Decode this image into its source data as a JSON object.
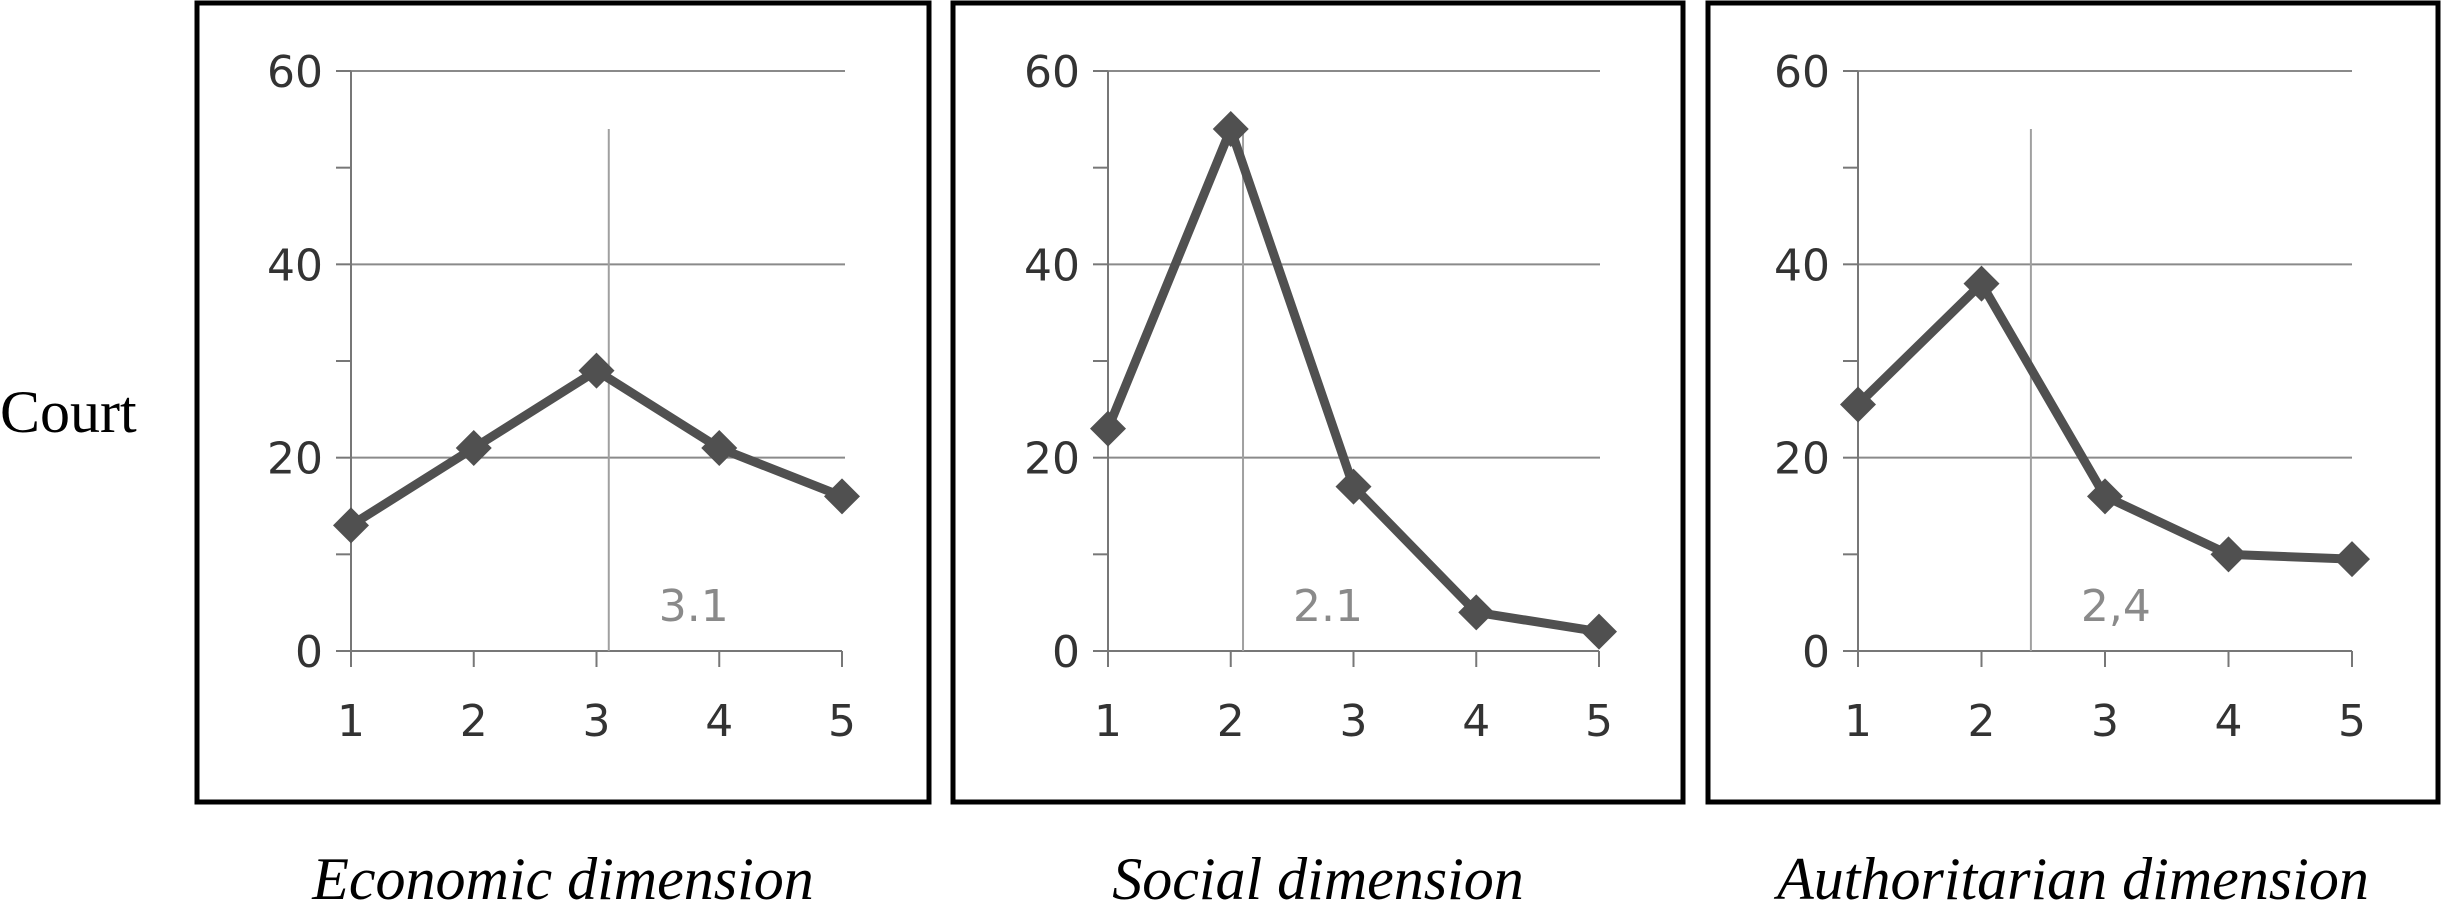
{
  "row_label": "Court",
  "chart_data": [
    {
      "type": "line",
      "caption": "Economic dimension",
      "x": [
        1,
        2,
        3,
        4,
        5
      ],
      "values": [
        13,
        21,
        29,
        21,
        16
      ],
      "mean": 3.1,
      "mean_label": "3.1",
      "ylim": [
        0,
        60
      ],
      "yticks": [
        0,
        20,
        40,
        60
      ],
      "grid": true,
      "line_color": "#505050",
      "marker": "diamond"
    },
    {
      "type": "line",
      "caption": "Social dimension",
      "x": [
        1,
        2,
        3,
        4,
        5
      ],
      "values": [
        23,
        54,
        17,
        4,
        2
      ],
      "mean": 2.1,
      "mean_label": "2.1",
      "ylim": [
        0,
        60
      ],
      "yticks": [
        0,
        20,
        40,
        60
      ],
      "grid": true,
      "line_color": "#505050",
      "marker": "diamond"
    },
    {
      "type": "line",
      "caption": "Authoritarian dimension",
      "x": [
        1,
        2,
        3,
        4,
        5
      ],
      "values": [
        25.5,
        38,
        16,
        10,
        9.5
      ],
      "mean": 2.4,
      "mean_label": "2,4",
      "ylim": [
        0,
        60
      ],
      "yticks": [
        0,
        20,
        40,
        60
      ],
      "grid": true,
      "line_color": "#505050",
      "marker": "diamond"
    }
  ]
}
